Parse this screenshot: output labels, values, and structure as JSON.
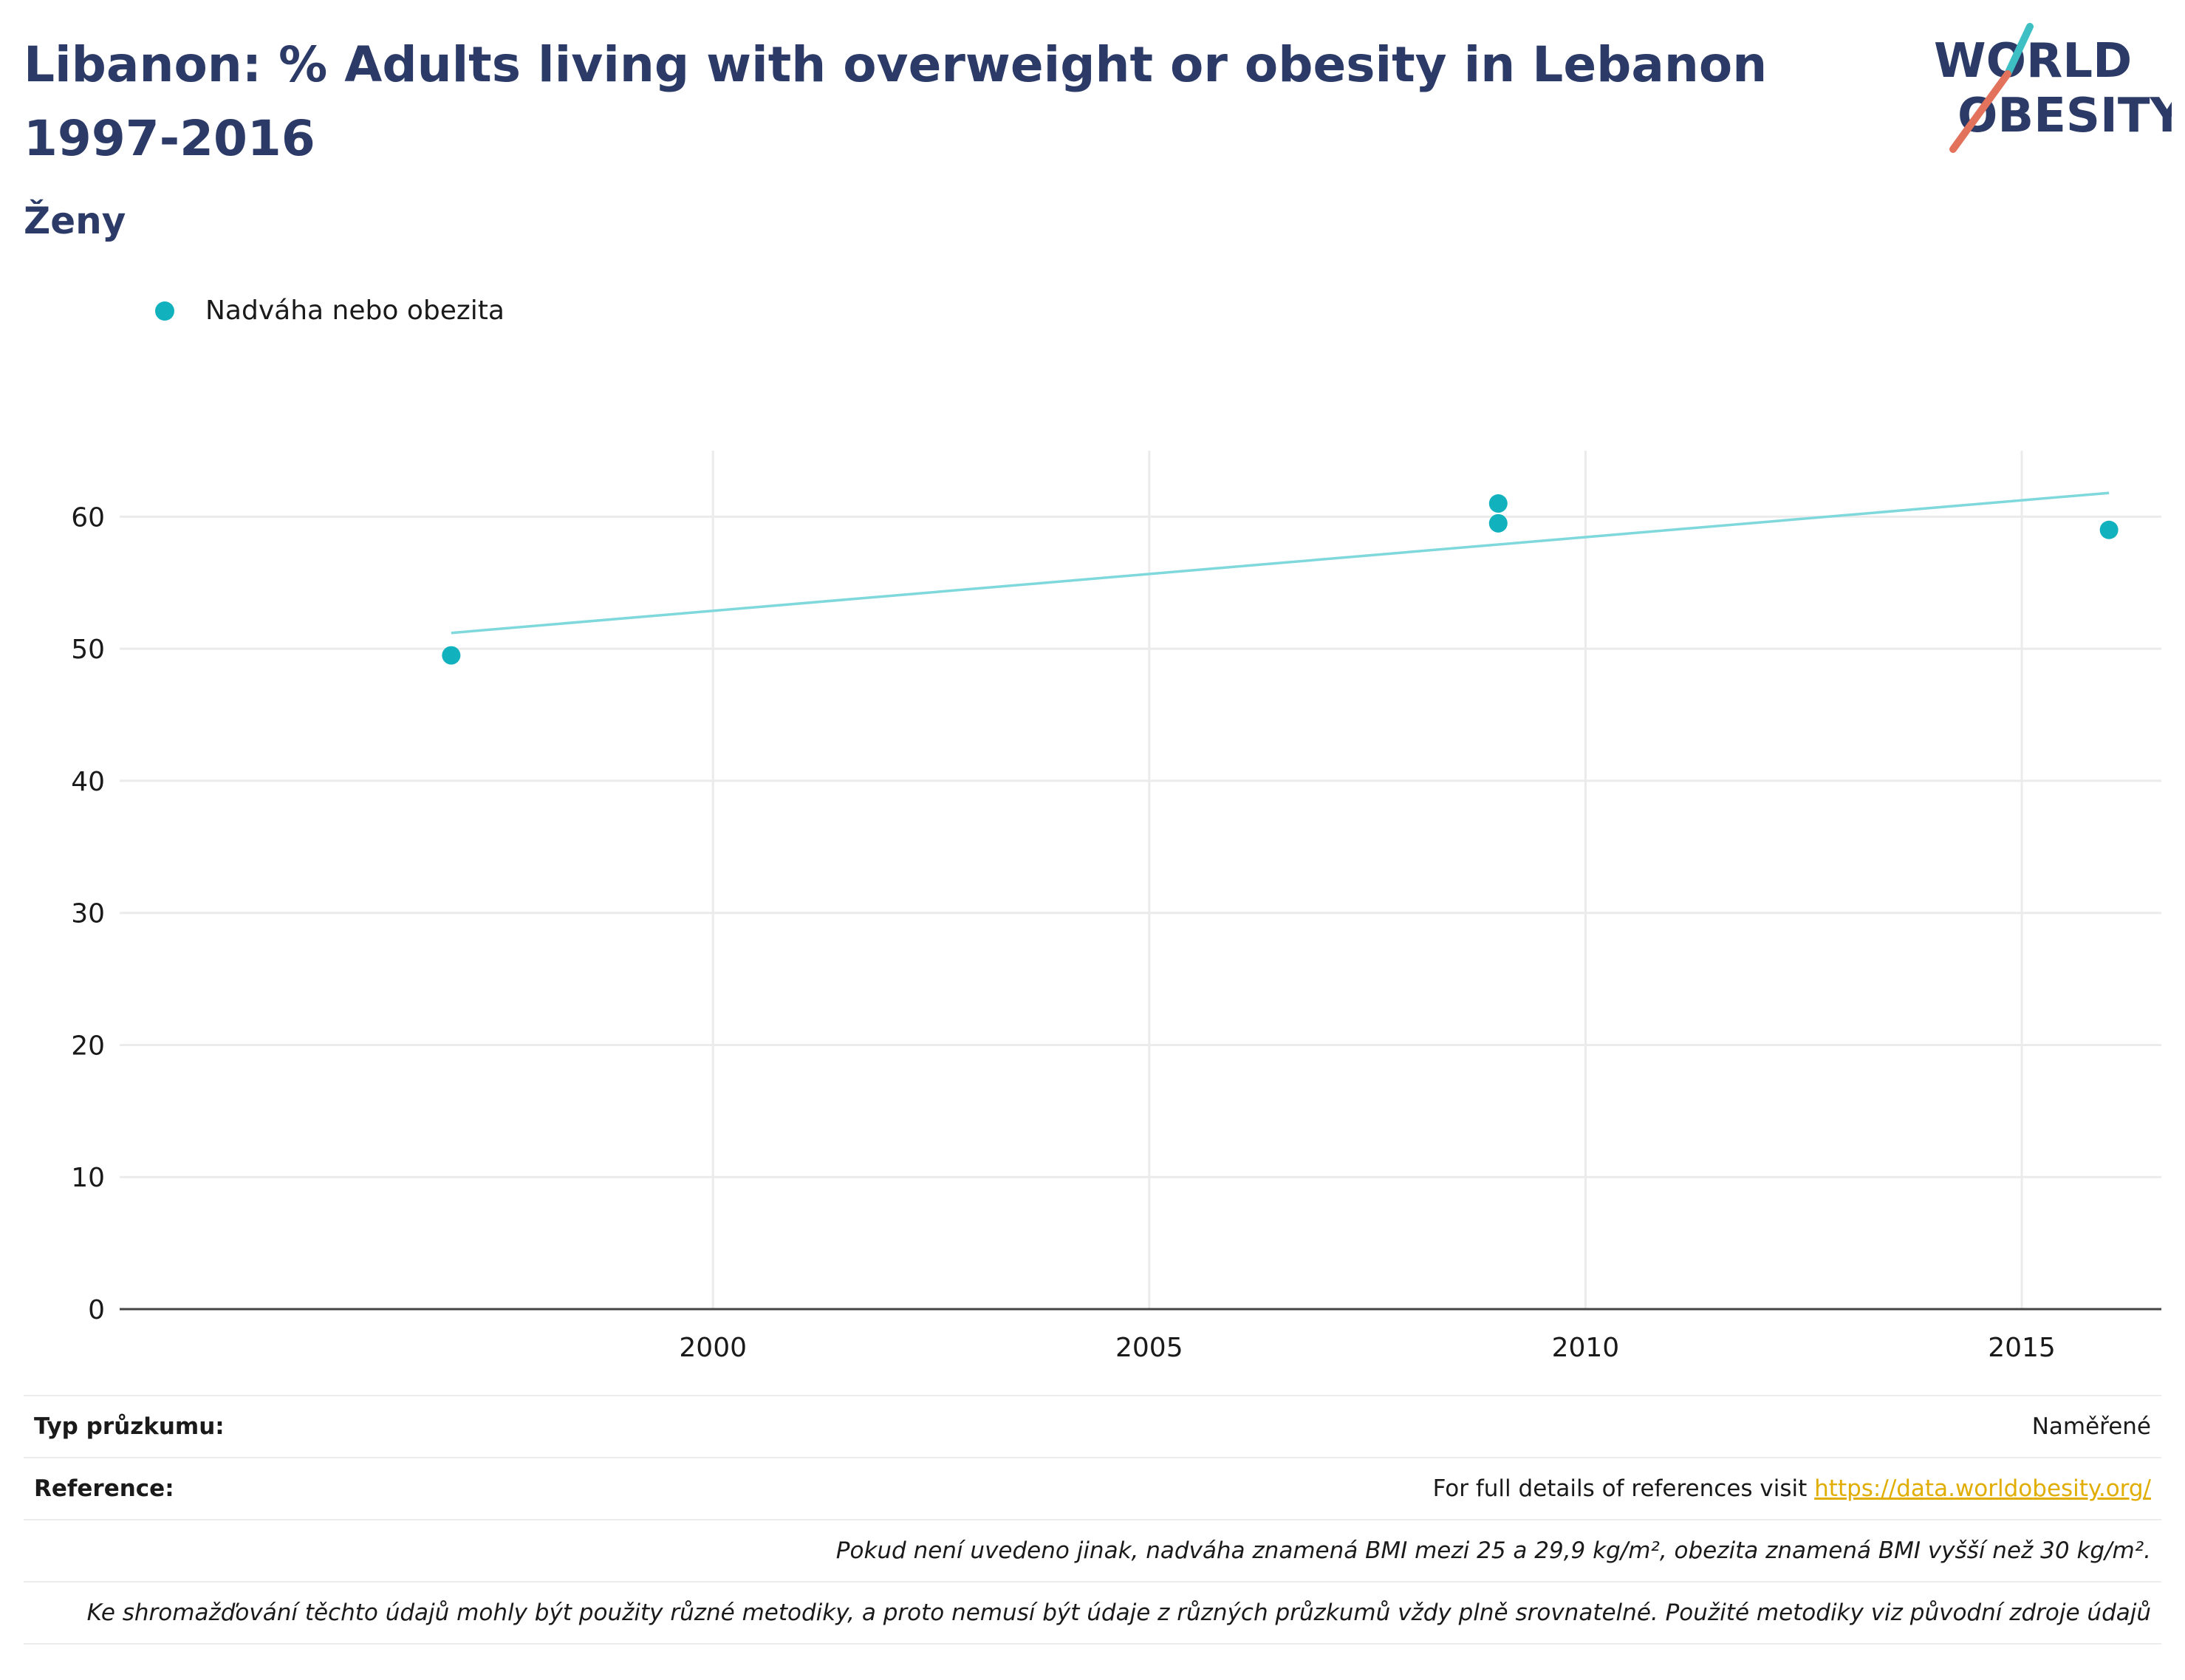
{
  "header": {
    "title": "Libanon: % Adults living with overweight or obesity in Lebanon 1997-2016",
    "subtitle": "Ženy"
  },
  "logo": {
    "line1": "WORLD",
    "line2": "OBESITY",
    "accent_colors": [
      "#3dbfc4",
      "#e2725b"
    ]
  },
  "legend": {
    "items": [
      {
        "label": "Nadváha nebo obezita",
        "color": "#11b2be"
      }
    ]
  },
  "chart_data": {
    "type": "scatter",
    "series": [
      {
        "name": "Nadváha nebo obezita",
        "color": "#11b2be",
        "points": [
          {
            "x": 1997,
            "y": 49.5
          },
          {
            "x": 2009,
            "y": 61.0
          },
          {
            "x": 2009,
            "y": 59.5
          },
          {
            "x": 2016,
            "y": 59.0
          }
        ]
      }
    ],
    "trendline": {
      "color": "#7fd8db",
      "points": [
        {
          "x": 1997,
          "y": 51.2
        },
        {
          "x": 2016,
          "y": 61.8
        }
      ]
    },
    "xlim": [
      1993.2,
      2016.6
    ],
    "ylim": [
      0,
      65
    ],
    "x_ticks": [
      2000,
      2005,
      2010,
      2015
    ],
    "y_ticks": [
      0,
      10,
      20,
      30,
      40,
      50,
      60
    ],
    "xlabel": "",
    "ylabel": "",
    "grid": true,
    "legend_position": "top-left"
  },
  "info": {
    "survey_type_label": "Typ průzkumu:",
    "survey_type_value": "Naměřené",
    "reference_label": "Reference:",
    "reference_text": "For full details of references visit ",
    "reference_link": "https://data.worldobesity.org/",
    "note_bmi": "Pokud není uvedeno jinak, nadváha znamená BMI mezi 25 a 29,9 kg/m², obezita znamená BMI vyšší než 30 kg/m².",
    "note_methods": "Ke shromažďování těchto údajů mohly být použity různé metodiky, a proto nemusí být údaje z různých průzkumů vždy plně srovnatelné. Použité metodiky viz původní zdroje údajů"
  }
}
